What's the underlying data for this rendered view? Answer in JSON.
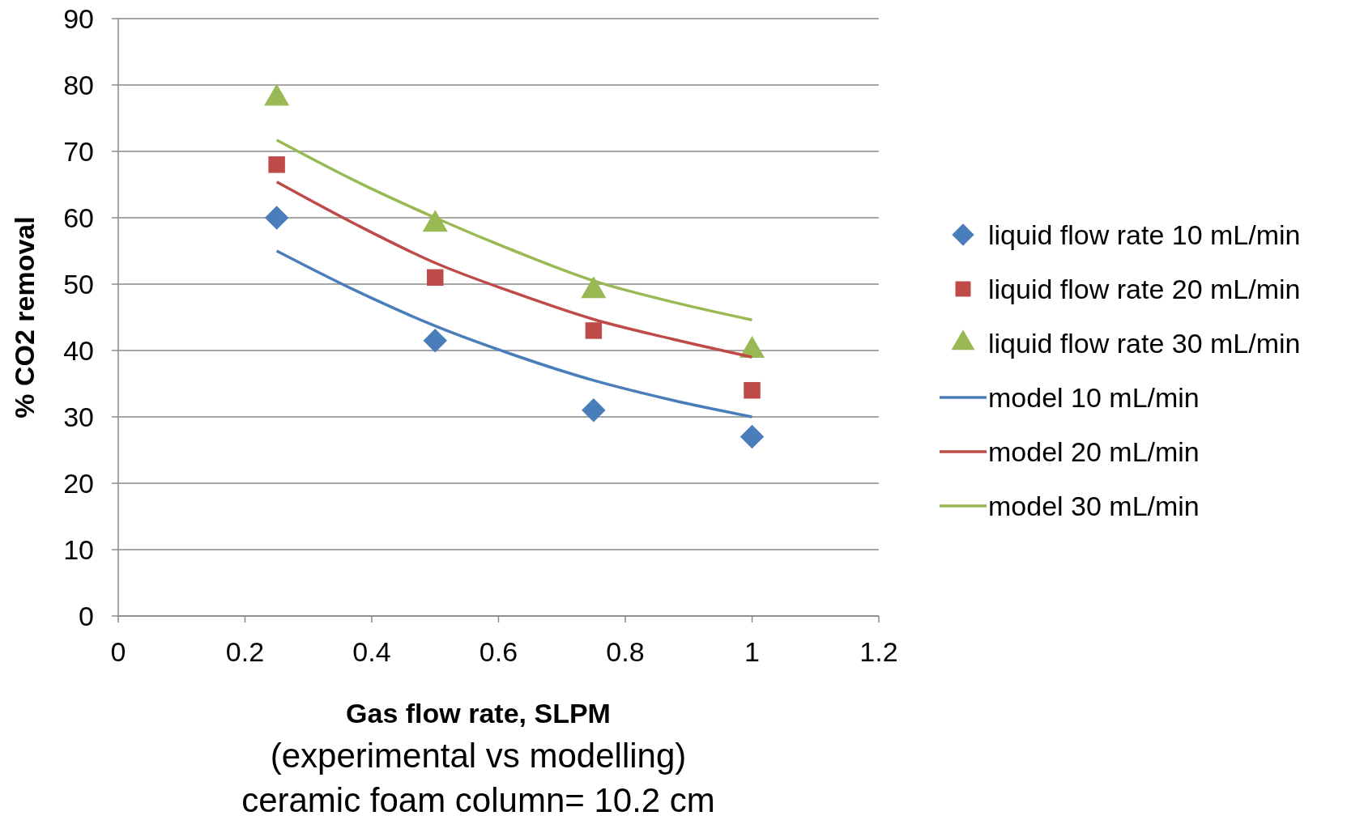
{
  "chart_data": {
    "type": "scatter",
    "xlabel": "Gas flow rate, SLPM",
    "ylabel": "% CO2 removal",
    "annotations": [
      "(experimental vs modelling)",
      "ceramic foam column= 10.2 cm"
    ],
    "xlim": [
      0,
      1.2
    ],
    "xticks": [
      0,
      0.2,
      0.4,
      0.6,
      0.8,
      1,
      1.2
    ],
    "ylim": [
      0,
      90
    ],
    "yticks": [
      0,
      10,
      20,
      30,
      40,
      50,
      60,
      70,
      80,
      90
    ],
    "grid": "y",
    "legend": "right",
    "series": [
      {
        "name": "liquid flow rate 10 mL/min",
        "marker": "diamond",
        "color": "#4a7ebb",
        "x": [
          0.25,
          0.5,
          0.75,
          1
        ],
        "values": [
          60,
          41.5,
          31,
          27
        ]
      },
      {
        "name": "liquid flow rate 20 mL/min",
        "marker": "square",
        "color": "#be4b48",
        "x": [
          0.25,
          0.5,
          0.75,
          1
        ],
        "values": [
          68,
          51,
          43,
          34
        ]
      },
      {
        "name": "liquid flow rate 30 mL/min",
        "marker": "triangle",
        "color": "#98b954",
        "x": [
          0.25,
          0.5,
          0.75,
          1
        ],
        "values": [
          78,
          59,
          49,
          40
        ]
      },
      {
        "name": "model 10 mL/min",
        "type": "line",
        "marker": "none",
        "line_style": "solid",
        "color": "#4a7ebb",
        "x": [
          0.25,
          0.375,
          0.5,
          0.625,
          0.75,
          0.875,
          1
        ],
        "values": [
          55,
          49,
          43.7,
          39.3,
          35.5,
          32.5,
          30
        ]
      },
      {
        "name": "model 20 mL/min",
        "type": "line",
        "marker": "none",
        "line_style": "solid",
        "color": "#be4b48",
        "x": [
          0.25,
          0.375,
          0.5,
          0.625,
          0.75,
          0.875,
          1
        ],
        "values": [
          65.4,
          59,
          53.2,
          48.7,
          44.7,
          41.7,
          39
        ]
      },
      {
        "name": "model 30 mL/min",
        "type": "line",
        "marker": "none",
        "line_style": "solid",
        "color": "#98b954",
        "x": [
          0.25,
          0.375,
          0.5,
          0.625,
          0.75,
          0.875,
          1
        ],
        "values": [
          71.7,
          65.5,
          60,
          55,
          50.5,
          47.3,
          44.6
        ]
      }
    ]
  }
}
